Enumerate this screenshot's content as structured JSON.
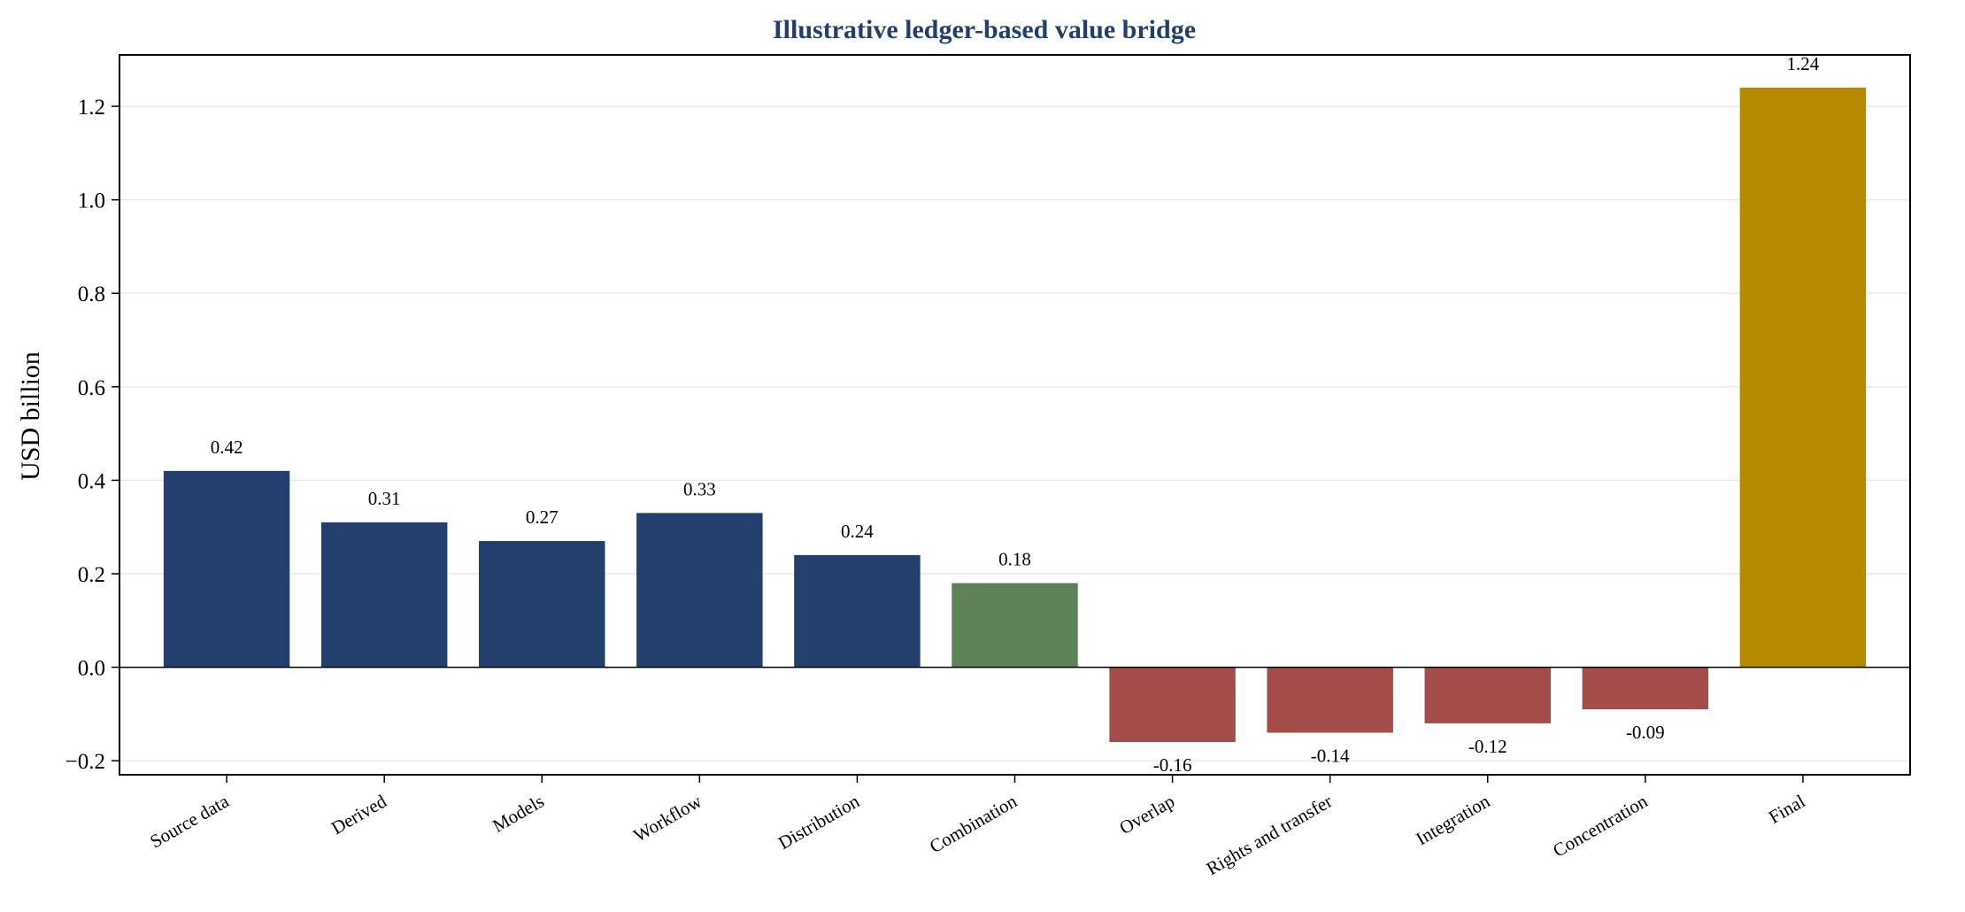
{
  "chart_data": {
    "type": "bar",
    "title": "Illustrative ledger-based value bridge",
    "xlabel": "",
    "ylabel": "USD billion",
    "ylim": [
      -0.23,
      1.31
    ],
    "yticks": [
      -0.2,
      0.0,
      0.2,
      0.4,
      0.6,
      0.8,
      1.0,
      1.2
    ],
    "ytick_labels": [
      "−0.2",
      "0.0",
      "0.2",
      "0.4",
      "0.6",
      "0.8",
      "1.0",
      "1.2"
    ],
    "grid": "horizontal",
    "categories": [
      "Source data",
      "Derived",
      "Models",
      "Workflow",
      "Distribution",
      "Combination",
      "Overlap",
      "Rights and transfer",
      "Integration",
      "Concentration",
      "Final"
    ],
    "values": [
      0.42,
      0.31,
      0.27,
      0.33,
      0.24,
      0.18,
      -0.16,
      -0.14,
      -0.12,
      -0.09,
      1.24
    ],
    "value_labels": [
      "0.42",
      "0.31",
      "0.27",
      "0.33",
      "0.24",
      "0.18",
      "-0.16",
      "-0.14",
      "-0.12",
      "-0.09",
      "1.24"
    ],
    "colors": [
      "#22406b",
      "#22406b",
      "#22406b",
      "#22406b",
      "#22406b",
      "#5e8159",
      "#a34c4a",
      "#a34c4a",
      "#a34c4a",
      "#a34c4a",
      "#b38a00"
    ],
    "title_color": "#22406b"
  }
}
